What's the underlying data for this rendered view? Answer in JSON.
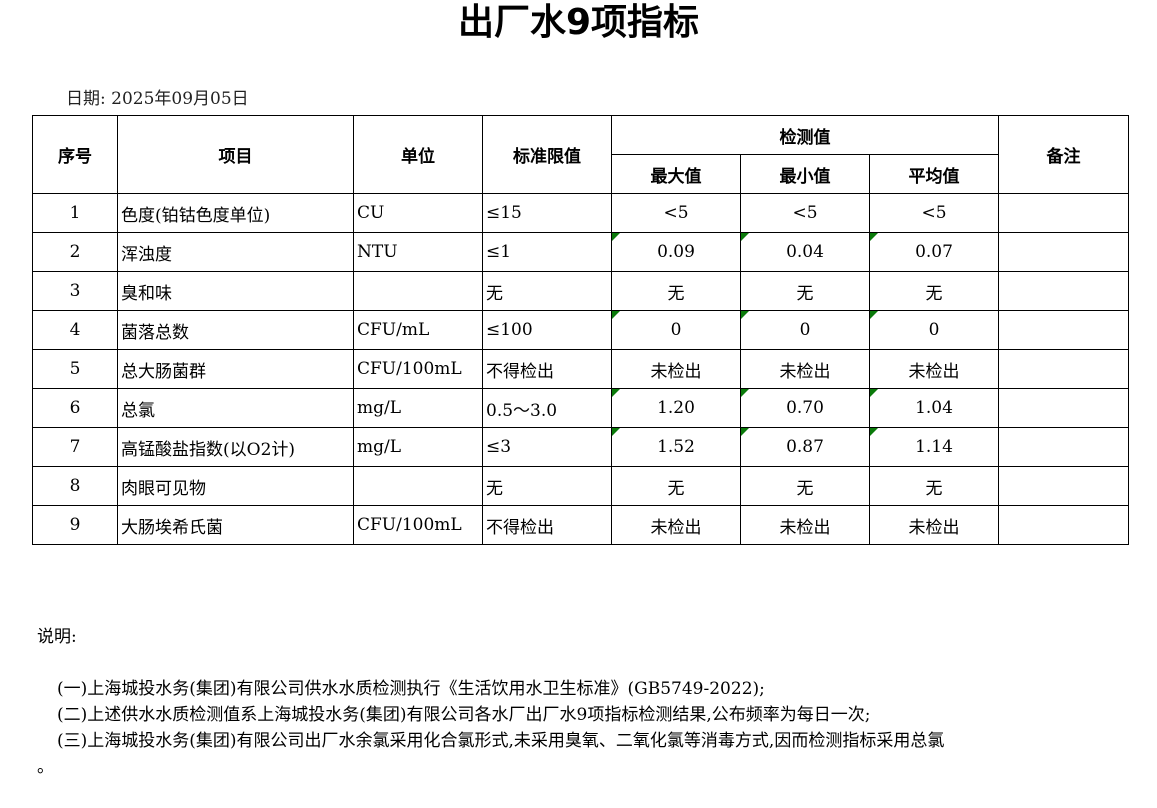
{
  "title": "出厂水9项指标",
  "date_label": "日期: 2025年09月05日",
  "headers": {
    "seq": "序号",
    "item": "项目",
    "unit": "单位",
    "limit": "标准限值",
    "measured": "检测值",
    "max": "最大值",
    "min": "最小值",
    "avg": "平均值",
    "remark": "备注"
  },
  "rows": [
    {
      "seq": "1",
      "item": "色度(铂钴色度单位)",
      "unit": "CU",
      "limit": "≤15",
      "max": "<5",
      "min": "<5",
      "avg": "<5",
      "remark": "",
      "flag": false
    },
    {
      "seq": "2",
      "item": "浑浊度",
      "unit": "NTU",
      "limit": "≤1",
      "max": "0.09",
      "min": "0.04",
      "avg": "0.07",
      "remark": "",
      "flag": true
    },
    {
      "seq": "3",
      "item": "臭和味",
      "unit": "",
      "limit": "无",
      "max": "无",
      "min": "无",
      "avg": "无",
      "remark": "",
      "flag": false
    },
    {
      "seq": "4",
      "item": "菌落总数",
      "unit": "CFU/mL",
      "limit": "≤100",
      "max": "0",
      "min": "0",
      "avg": "0",
      "remark": "",
      "flag": true
    },
    {
      "seq": "5",
      "item": "总大肠菌群",
      "unit": "CFU/100mL",
      "limit": "不得检出",
      "max": "未检出",
      "min": "未检出",
      "avg": "未检出",
      "remark": "",
      "flag": false
    },
    {
      "seq": "6",
      "item": "总氯",
      "unit": "mg/L",
      "limit": "0.5～3.0",
      "max": "1.20",
      "min": "0.70",
      "avg": "1.04",
      "remark": "",
      "flag": true
    },
    {
      "seq": "7",
      "item": "高锰酸盐指数(以O2计)",
      "unit": "mg/L",
      "limit": "≤3",
      "max": "1.52",
      "min": "0.87",
      "avg": "1.14",
      "remark": "",
      "flag": true
    },
    {
      "seq": "8",
      "item": "肉眼可见物",
      "unit": "",
      "limit": "无",
      "max": "无",
      "min": "无",
      "avg": "无",
      "remark": "",
      "flag": false
    },
    {
      "seq": "9",
      "item": "大肠埃希氏菌",
      "unit": "CFU/100mL",
      "limit": "不得检出",
      "max": "未检出",
      "min": "未检出",
      "avg": "未检出",
      "remark": "",
      "flag": false
    }
  ],
  "notes": {
    "heading": "说明:",
    "items": [
      "(一)上海城投水务(集团)有限公司供水水质检测执行《生活饮用水卫生标准》(GB5749-2022);",
      "(二)上述供水水质检测值系上海城投水务(集团)有限公司各水厂出厂水9项指标检测结果,公布频率为每日一次;",
      "(三)上海城投水务(集团)有限公司出厂水余氯采用化合氯形式,未采用臭氧、二氧化氯等消毒方式,因而检测指标采用总氯"
    ],
    "tail": "。"
  },
  "colors": {
    "flag": "#0a7a0a"
  }
}
